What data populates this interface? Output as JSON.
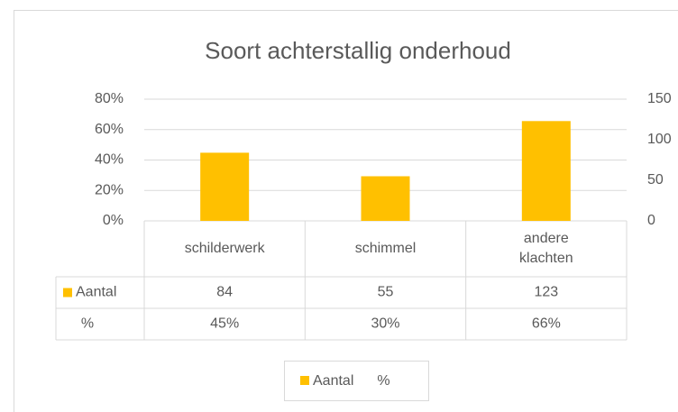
{
  "chart_data": {
    "type": "bar",
    "title": "Soort achterstallig onderhoud",
    "categories": [
      "schilderwerk",
      "schimmel",
      "andere klachten"
    ],
    "series": [
      {
        "name": "Aantal",
        "color": "#ffc000",
        "axis": "y2",
        "values": [
          84,
          55,
          123
        ]
      },
      {
        "name": "%",
        "values": [
          45,
          30,
          66
        ],
        "value_labels": [
          "45%",
          "30%",
          "66%"
        ]
      }
    ],
    "ylim": [
      0,
      80
    ],
    "yticks": [
      {
        "value": 0,
        "label": "0%"
      },
      {
        "value": 20,
        "label": "20%"
      },
      {
        "value": 40,
        "label": "40%"
      },
      {
        "value": 60,
        "label": "60%"
      },
      {
        "value": 80,
        "label": "80%"
      }
    ],
    "y2lim": [
      0,
      150
    ],
    "y2ticks": [
      0,
      50,
      100,
      150
    ],
    "grid": true,
    "legend": "bottom"
  }
}
